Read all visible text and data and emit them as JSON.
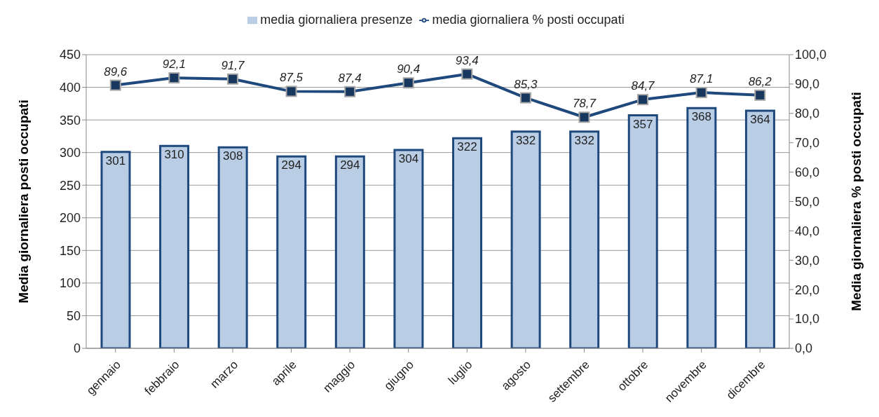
{
  "chart_data": {
    "type": "bar",
    "categories": [
      "gennaio",
      "febbraio",
      "marzo",
      "aprile",
      "maggio",
      "giugno",
      "luglio",
      "agosto",
      "settembre",
      "ottobre",
      "novembre",
      "dicembre"
    ],
    "series": [
      {
        "name": "media giornaliera presenze",
        "color": "#b9cde5",
        "values": [
          301,
          310,
          308,
          294,
          294,
          304,
          322,
          332,
          332,
          357,
          368,
          364
        ],
        "value_labels": [
          "301",
          "310",
          "308",
          "294",
          "294",
          "304",
          "322",
          "332",
          "332",
          "357",
          "368",
          "364"
        ]
      },
      {
        "name": "media giornaliera % posti occupati",
        "type": "line",
        "axis": "y2",
        "color": "#1f497d",
        "marker": "square",
        "values": [
          89.6,
          92.1,
          91.7,
          87.5,
          87.4,
          90.4,
          93.4,
          85.3,
          78.7,
          84.7,
          87.1,
          86.2
        ],
        "value_labels": [
          "89,6",
          "92,1",
          "91,7",
          "87,5",
          "87,4",
          "90,4",
          "93,4",
          "85,3",
          "78,7",
          "84,7",
          "87,1",
          "86,2"
        ]
      }
    ],
    "ylabel": "Media giornaliera  posti occupati",
    "y2label": "Media giornaliera % posti occupati",
    "ylim": [
      0,
      450
    ],
    "yticks": [
      0,
      50,
      100,
      150,
      200,
      250,
      300,
      350,
      400,
      450
    ],
    "y2lim": [
      0,
      100
    ],
    "y2ticks": [
      {
        "value": 0,
        "label": "0,0"
      },
      {
        "value": 10,
        "label": "10,0"
      },
      {
        "value": 20,
        "label": "20,0"
      },
      {
        "value": 30,
        "label": "30,0"
      },
      {
        "value": 40,
        "label": "40,0"
      },
      {
        "value": 50,
        "label": "50,0"
      },
      {
        "value": 60,
        "label": "60,0"
      },
      {
        "value": 70,
        "label": "70,0"
      },
      {
        "value": 80,
        "label": "80,0"
      },
      {
        "value": 90,
        "label": "90,0"
      },
      {
        "value": 100,
        "label": "100,0"
      }
    ],
    "grid": "y",
    "legend": "top"
  }
}
